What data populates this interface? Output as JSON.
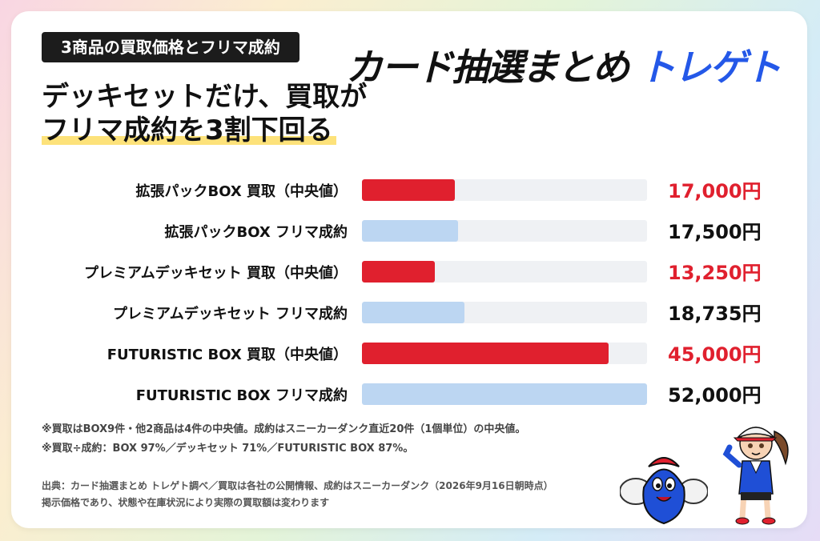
{
  "tag": "3商品の買取価格とフリマ成約",
  "headline": {
    "line1": "デッキセットだけ、買取が",
    "line2": "フリマ成約を3割下回る"
  },
  "logo": {
    "part1": "カード抽選まとめ",
    "part2": "トレゲト"
  },
  "colors": {
    "buy": "#e0202e",
    "sell": "#bcd6f2",
    "accent_logo": "#2458e8",
    "highlight": "#fde27a"
  },
  "chart_data": {
    "type": "bar",
    "orientation": "horizontal",
    "xlim": [
      0,
      52000
    ],
    "categories": [
      "拡張パックBOX 買取（中央値）",
      "拡張パックBOX フリマ成約",
      "プレミアムデッキセット 買取（中央値）",
      "プレミアムデッキセット フリマ成約",
      "FUTURISTIC BOX 買取（中央値）",
      "FUTURISTIC BOX フリマ成約"
    ],
    "values": [
      17000,
      17500,
      13250,
      18735,
      45000,
      52000
    ],
    "value_labels": [
      "17,000円",
      "17,500円",
      "13,250円",
      "18,735円",
      "45,000円",
      "52,000円"
    ],
    "kinds": [
      "buy",
      "sell",
      "buy",
      "sell",
      "buy",
      "sell"
    ]
  },
  "notes": {
    "line1": "※買取はBOX9件・他2商品は4件の中央値。成約はスニーカーダンク直近20件（1個単位）の中央値。",
    "line2": "※買取÷成約：BOX 97%／デッキセット 71%／FUTURISTIC BOX 87%。"
  },
  "source": {
    "line1": "出典：カード抽選まとめ トレゲト調べ／買取は各社の公開情報、成約はスニーカーダンク（2026年9月16日朝時点）",
    "line2": "掲示価格であり、状態や在庫状況により実際の買取額は変わります"
  }
}
